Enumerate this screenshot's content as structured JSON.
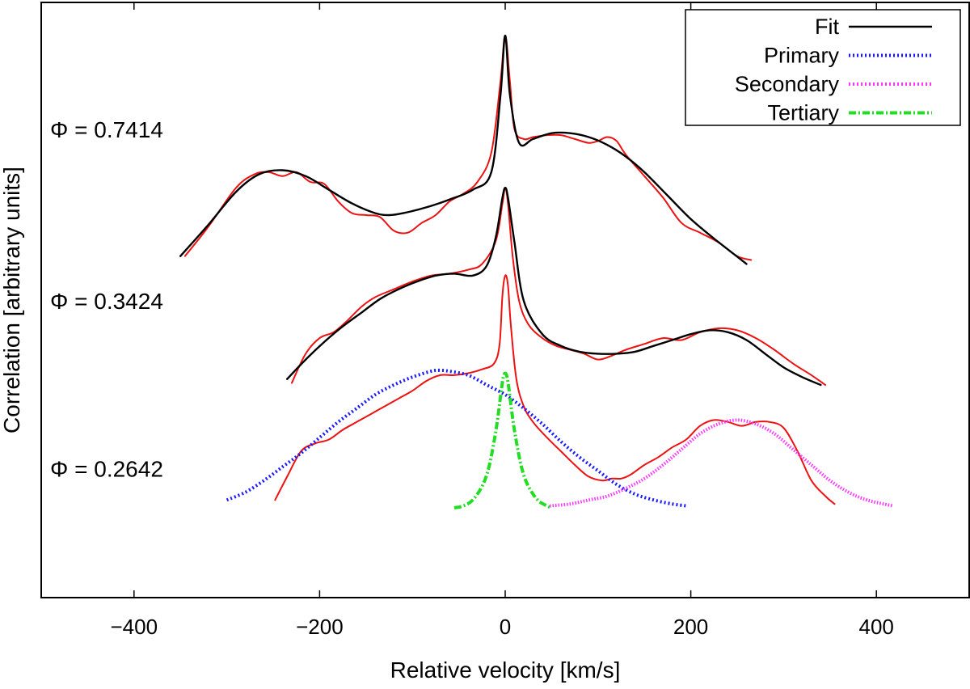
{
  "chart_data": {
    "type": "line",
    "title": "",
    "xlabel": "Relative velocity [km/s]",
    "ylabel": "Correlation [arbitrary units]",
    "xlim": [
      -500,
      500
    ],
    "ylim": [
      -0.3,
      2.75
    ],
    "xticks": [
      {
        "value": -400,
        "label": "−400"
      },
      {
        "value": -200,
        "label": "−200"
      },
      {
        "value": 0,
        "label": "0"
      },
      {
        "value": 200,
        "label": "200"
      },
      {
        "value": 400,
        "label": "400"
      }
    ],
    "grid": false,
    "legend": {
      "position": "top-right",
      "entries": [
        {
          "name": "Fit",
          "color": "#000000",
          "style": "solid"
        },
        {
          "name": "Primary",
          "color": "#1a1aff",
          "style": "dotted"
        },
        {
          "name": "Secondary",
          "color": "#ff33ff",
          "style": "dotted"
        },
        {
          "name": "Tertiary",
          "color": "#22dd22",
          "style": "dashdot"
        }
      ]
    },
    "phase_labels": [
      {
        "text": "Φ = 0.7414",
        "y": 2.1
      },
      {
        "text": "Φ = 0.3424",
        "y": 1.22
      },
      {
        "text": "Φ = 0.2642",
        "y": 0.36
      }
    ],
    "series": [
      {
        "name": "Observed Φ = 0.7414",
        "role": "observed",
        "color": "#ee1111",
        "x": [
          -345,
          -320,
          -290,
          -270,
          -255,
          -240,
          -225,
          -210,
          -195,
          -180,
          -165,
          -150,
          -135,
          -120,
          -105,
          -90,
          -75,
          -60,
          -45,
          -30,
          -15,
          -5,
          0,
          5,
          10,
          20,
          30,
          45,
          60,
          75,
          90,
          100,
          110,
          120,
          130,
          150,
          170,
          190,
          210,
          230,
          250,
          265
        ],
        "y": [
          1.45,
          1.6,
          1.8,
          1.87,
          1.88,
          1.86,
          1.88,
          1.83,
          1.82,
          1.73,
          1.67,
          1.66,
          1.65,
          1.58,
          1.57,
          1.62,
          1.66,
          1.73,
          1.77,
          1.83,
          1.98,
          2.35,
          2.58,
          2.35,
          2.1,
          2.05,
          2.06,
          2.07,
          2.07,
          2.05,
          2.03,
          2.04,
          2.06,
          2.04,
          1.97,
          1.86,
          1.75,
          1.62,
          1.57,
          1.52,
          1.45,
          1.43
        ]
      },
      {
        "name": "Fit Φ = 0.7414",
        "role": "fit",
        "color": "#000000",
        "x": [
          -350,
          -320,
          -290,
          -265,
          -240,
          -215,
          -190,
          -165,
          -140,
          -125,
          -110,
          -85,
          -60,
          -35,
          -15,
          -5,
          0,
          5,
          15,
          30,
          50,
          70,
          90,
          110,
          130,
          150,
          175,
          200,
          225,
          260
        ],
        "y": [
          1.45,
          1.61,
          1.78,
          1.87,
          1.89,
          1.86,
          1.79,
          1.72,
          1.67,
          1.66,
          1.67,
          1.7,
          1.74,
          1.79,
          1.88,
          2.28,
          2.58,
          2.28,
          2.03,
          2.05,
          2.08,
          2.08,
          2.06,
          2.02,
          1.96,
          1.88,
          1.76,
          1.64,
          1.54,
          1.41
        ]
      },
      {
        "name": "Observed Φ = 0.3424",
        "role": "observed",
        "color": "#ee1111",
        "x": [
          -230,
          -215,
          -200,
          -185,
          -170,
          -155,
          -140,
          -120,
          -100,
          -80,
          -60,
          -40,
          -25,
          -10,
          -3,
          0,
          3,
          8,
          15,
          25,
          40,
          55,
          70,
          85,
          100,
          115,
          130,
          150,
          170,
          190,
          210,
          230,
          250,
          270,
          290,
          310,
          330,
          345
        ],
        "y": [
          0.8,
          0.95,
          1.03,
          1.06,
          1.12,
          1.19,
          1.24,
          1.28,
          1.32,
          1.35,
          1.36,
          1.38,
          1.41,
          1.53,
          1.72,
          1.8,
          1.72,
          1.45,
          1.22,
          1.1,
          1.03,
          0.99,
          0.97,
          0.95,
          0.92,
          0.94,
          0.97,
          1.0,
          1.03,
          1.02,
          1.06,
          1.08,
          1.07,
          1.03,
          0.97,
          0.9,
          0.84,
          0.79
        ]
      },
      {
        "name": "Fit Φ = 0.3424",
        "role": "fit",
        "color": "#000000",
        "x": [
          -235,
          -215,
          -195,
          -175,
          -155,
          -135,
          -115,
          -95,
          -75,
          -55,
          -35,
          -20,
          -10,
          -3,
          0,
          3,
          10,
          20,
          40,
          60,
          80,
          100,
          120,
          140,
          160,
          180,
          200,
          220,
          240,
          260,
          280,
          300,
          320,
          340
        ],
        "y": [
          0.82,
          0.92,
          1.01,
          1.09,
          1.16,
          1.23,
          1.28,
          1.32,
          1.35,
          1.36,
          1.35,
          1.4,
          1.55,
          1.75,
          1.8,
          1.75,
          1.52,
          1.22,
          1.05,
          0.99,
          0.96,
          0.95,
          0.95,
          0.96,
          0.99,
          1.02,
          1.05,
          1.07,
          1.06,
          1.02,
          0.95,
          0.88,
          0.83,
          0.79
        ]
      },
      {
        "name": "Observed Φ = 0.2642",
        "role": "observed",
        "color": "#ee1111",
        "x": [
          -248,
          -235,
          -220,
          -205,
          -190,
          -175,
          -160,
          -145,
          -130,
          -115,
          -100,
          -85,
          -70,
          -55,
          -40,
          -25,
          -12,
          -6,
          -3,
          0,
          3,
          6,
          12,
          20,
          30,
          45,
          60,
          75,
          90,
          105,
          115,
          125,
          135,
          150,
          165,
          180,
          195,
          210,
          225,
          240,
          255,
          270,
          285,
          300,
          315,
          330,
          345,
          355
        ],
        "y": [
          0.2,
          0.32,
          0.45,
          0.49,
          0.51,
          0.56,
          0.6,
          0.64,
          0.68,
          0.72,
          0.76,
          0.81,
          0.84,
          0.84,
          0.85,
          0.87,
          0.9,
          1.0,
          1.25,
          1.35,
          1.3,
          1.1,
          0.82,
          0.68,
          0.6,
          0.52,
          0.45,
          0.38,
          0.32,
          0.3,
          0.31,
          0.31,
          0.33,
          0.38,
          0.42,
          0.47,
          0.51,
          0.58,
          0.61,
          0.6,
          0.58,
          0.6,
          0.6,
          0.57,
          0.45,
          0.3,
          0.22,
          0.18
        ]
      },
      {
        "name": "Primary",
        "role": "component",
        "color": "#1a1aff",
        "dash": "2,3",
        "x": [
          -300,
          -280,
          -260,
          -240,
          -220,
          -200,
          -180,
          -160,
          -140,
          -120,
          -100,
          -80,
          -70,
          -60,
          -40,
          -20,
          0,
          20,
          40,
          60,
          80,
          100,
          120,
          140,
          160,
          180,
          195
        ],
        "y": [
          0.2,
          0.24,
          0.3,
          0.37,
          0.44,
          0.52,
          0.6,
          0.67,
          0.74,
          0.79,
          0.83,
          0.86,
          0.865,
          0.86,
          0.84,
          0.79,
          0.74,
          0.67,
          0.59,
          0.5,
          0.42,
          0.35,
          0.28,
          0.23,
          0.2,
          0.18,
          0.17
        ]
      },
      {
        "name": "Secondary",
        "role": "component",
        "color": "#ff33ff",
        "dash": "1.5,2",
        "x": [
          48,
          70,
          90,
          110,
          130,
          150,
          170,
          190,
          210,
          230,
          250,
          270,
          290,
          310,
          330,
          350,
          370,
          390,
          418
        ],
        "y": [
          0.17,
          0.18,
          0.2,
          0.22,
          0.26,
          0.31,
          0.38,
          0.46,
          0.54,
          0.59,
          0.61,
          0.59,
          0.54,
          0.46,
          0.38,
          0.3,
          0.24,
          0.2,
          0.17
        ]
      },
      {
        "name": "Tertiary",
        "role": "component",
        "color": "#22dd22",
        "dash": "9,3,2,3",
        "x": [
          -55,
          -45,
          -35,
          -25,
          -18,
          -12,
          -8,
          -4,
          -2,
          0,
          2,
          4,
          8,
          12,
          18,
          25,
          35,
          45,
          50
        ],
        "y": [
          0.16,
          0.17,
          0.2,
          0.27,
          0.36,
          0.5,
          0.62,
          0.77,
          0.83,
          0.85,
          0.83,
          0.77,
          0.62,
          0.5,
          0.36,
          0.27,
          0.2,
          0.17,
          0.16
        ]
      }
    ]
  }
}
